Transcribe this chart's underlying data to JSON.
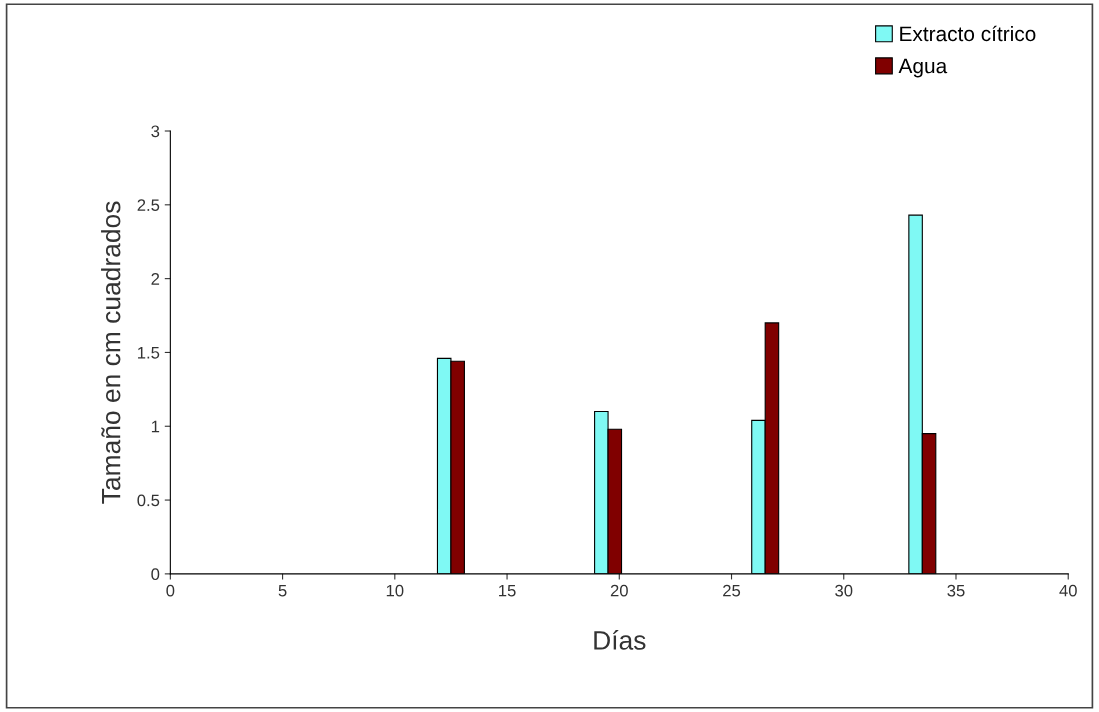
{
  "chart_data": {
    "type": "bar",
    "xlabel": "Días",
    "ylabel": "Tamaño en cm cuadrados",
    "x": [
      12.5,
      19.5,
      26.5,
      33.5
    ],
    "series": [
      {
        "name": "Extracto cítrico",
        "color": "#7ff9f4",
        "values": [
          1.46,
          1.1,
          1.04,
          2.43
        ]
      },
      {
        "name": "Agua",
        "color": "#800000",
        "values": [
          1.44,
          0.98,
          1.7,
          0.95
        ]
      }
    ],
    "xlim": [
      0,
      40
    ],
    "xticks": [
      0,
      5,
      10,
      15,
      20,
      25,
      30,
      35,
      40
    ],
    "ylim": [
      0,
      3
    ],
    "yticks": [
      0,
      0.5,
      1,
      1.5,
      2,
      2.5,
      3
    ],
    "legend": "top right",
    "grid": false
  }
}
